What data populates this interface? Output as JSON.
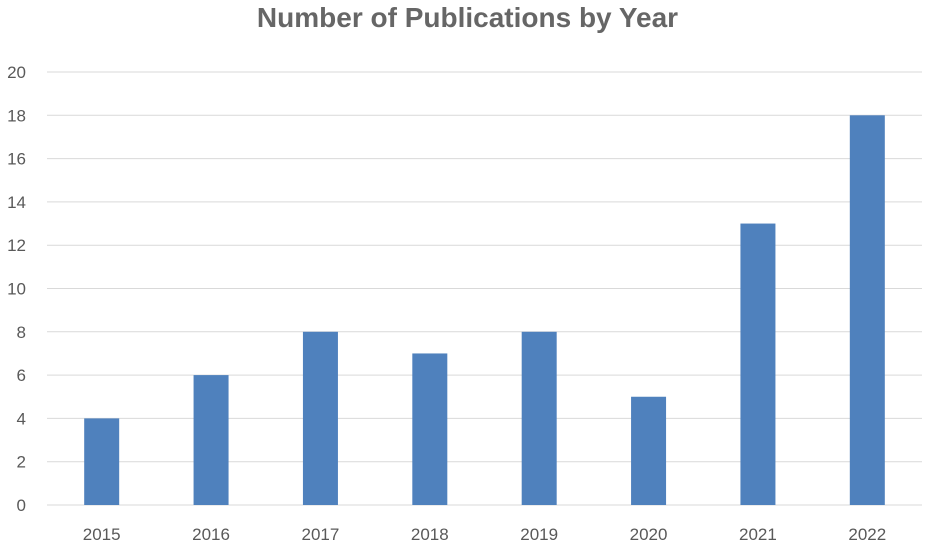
{
  "chart_data": {
    "type": "bar",
    "title": "Number of Publications by Year",
    "categories": [
      "2015",
      "2016",
      "2017",
      "2018",
      "2019",
      "2020",
      "2021",
      "2022"
    ],
    "series": [
      {
        "values": [
          4,
          6,
          8,
          7,
          8,
          5,
          13,
          18
        ]
      }
    ],
    "ylim": [
      0,
      20
    ],
    "yticks": [
      0,
      2,
      4,
      6,
      8,
      10,
      12,
      14,
      16,
      18,
      20
    ],
    "xlabel": "",
    "ylabel": "",
    "grid": true,
    "legend": "none",
    "colors": {
      "bar": "#4f81bd",
      "gridline": "#d9d9d9",
      "axis_text": "#595959",
      "title": "#666666"
    }
  }
}
